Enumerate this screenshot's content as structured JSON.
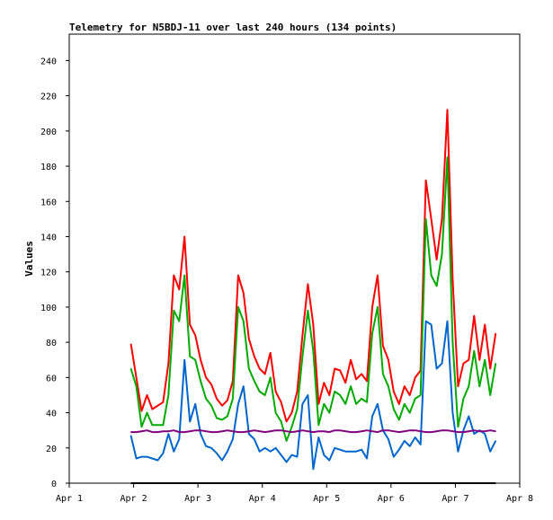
{
  "chart_data": {
    "type": "line",
    "title": "Telemetry for N5BDJ-11 over last 240 hours (134 points)",
    "xlabel": "",
    "ylabel": "Values",
    "ylim": [
      0,
      255
    ],
    "yticks": [
      0,
      20,
      40,
      60,
      80,
      100,
      120,
      140,
      160,
      180,
      200,
      220,
      240
    ],
    "xticks": [
      "Apr 1",
      "Apr 2",
      "Apr 3",
      "Apr 4",
      "Apr 5",
      "Apr 6",
      "Apr 7",
      "Apr 8"
    ],
    "grid": false,
    "x": [
      "Apr 1 23:00",
      "Apr 2 01:00",
      "Apr 2 03:00",
      "Apr 2 05:00",
      "Apr 2 07:00",
      "Apr 2 09:00",
      "Apr 2 11:00",
      "Apr 2 13:00",
      "Apr 2 15:00",
      "Apr 2 17:00",
      "Apr 2 19:00",
      "Apr 2 21:00",
      "Apr 2 23:00",
      "Apr 3 01:00",
      "Apr 3 03:00",
      "Apr 3 05:00",
      "Apr 3 07:00",
      "Apr 3 09:00",
      "Apr 3 11:00",
      "Apr 3 13:00",
      "Apr 3 15:00",
      "Apr 3 17:00",
      "Apr 3 19:00",
      "Apr 3 21:00",
      "Apr 3 23:00",
      "Apr 4 01:00",
      "Apr 4 03:00",
      "Apr 4 05:00",
      "Apr 4 07:00",
      "Apr 4 09:00",
      "Apr 4 11:00",
      "Apr 4 13:00",
      "Apr 4 15:00",
      "Apr 4 17:00",
      "Apr 4 19:00",
      "Apr 4 21:00",
      "Apr 4 23:00",
      "Apr 5 01:00",
      "Apr 5 03:00",
      "Apr 5 05:00",
      "Apr 5 07:00",
      "Apr 5 09:00",
      "Apr 5 11:00",
      "Apr 5 13:00",
      "Apr 5 15:00",
      "Apr 5 17:00",
      "Apr 5 19:00",
      "Apr 5 21:00",
      "Apr 5 23:00",
      "Apr 6 01:00",
      "Apr 6 03:00",
      "Apr 6 05:00",
      "Apr 6 07:00",
      "Apr 6 09:00",
      "Apr 6 11:00",
      "Apr 6 13:00",
      "Apr 6 15:00",
      "Apr 6 17:00",
      "Apr 6 19:00",
      "Apr 6 21:00",
      "Apr 6 23:00",
      "Apr 7 01:00",
      "Apr 7 03:00",
      "Apr 7 05:00",
      "Apr 7 07:00",
      "Apr 7 09:00",
      "Apr 7 11:00",
      "Apr 7 13:00",
      "Apr 7 15:00"
    ],
    "series": [
      {
        "color": "#ff0000",
        "values": [
          79,
          60,
          41,
          50,
          42,
          44,
          46,
          68,
          118,
          110,
          140,
          90,
          84,
          70,
          60,
          56,
          48,
          44,
          47,
          58,
          118,
          108,
          82,
          72,
          65,
          62,
          74,
          52,
          46,
          35,
          40,
          52,
          84,
          113,
          90,
          45,
          57,
          50,
          65,
          64,
          57,
          70,
          59,
          62,
          58,
          100,
          118,
          78,
          70,
          52,
          45,
          55,
          50,
          60,
          64,
          172,
          150,
          127,
          150,
          212,
          116,
          55,
          68,
          70,
          95,
          70,
          90,
          65,
          85
        ]
      },
      {
        "color": "#00aa00",
        "values": [
          65,
          55,
          32,
          40,
          33,
          33,
          33,
          50,
          98,
          92,
          118,
          72,
          70,
          58,
          48,
          44,
          37,
          36,
          38,
          48,
          100,
          92,
          65,
          58,
          52,
          50,
          60,
          40,
          35,
          24,
          32,
          42,
          72,
          98,
          75,
          33,
          45,
          40,
          52,
          50,
          45,
          55,
          45,
          48,
          46,
          85,
          100,
          62,
          55,
          42,
          36,
          45,
          40,
          48,
          50,
          150,
          118,
          112,
          130,
          185,
          80,
          32,
          48,
          55,
          75,
          55,
          70,
          50,
          68
        ]
      },
      {
        "color": "#0066cc",
        "values": [
          27,
          14,
          15,
          15,
          14,
          13,
          17,
          28,
          18,
          25,
          70,
          35,
          45,
          28,
          21,
          20,
          17,
          13,
          18,
          25,
          45,
          55,
          28,
          25,
          18,
          20,
          18,
          20,
          16,
          12,
          16,
          15,
          45,
          50,
          8,
          26,
          16,
          13,
          20,
          19,
          18,
          18,
          18,
          19,
          14,
          38,
          45,
          30,
          25,
          15,
          19,
          24,
          21,
          26,
          22,
          92,
          90,
          65,
          68,
          92,
          40,
          18,
          30,
          38,
          28,
          30,
          28,
          18,
          24
        ]
      },
      {
        "color": "#800080",
        "values": [
          29,
          29,
          29.5,
          30,
          29,
          29,
          29.5,
          29.5,
          30,
          29,
          29,
          29.5,
          30,
          30,
          29.5,
          29,
          29,
          29.5,
          30,
          29.5,
          29,
          29,
          29.5,
          30,
          29.5,
          29,
          29.5,
          30,
          30,
          29.5,
          29,
          29.5,
          30,
          29.5,
          29,
          29.5,
          29.5,
          29,
          30,
          30,
          29.5,
          29,
          29,
          29.5,
          30,
          29.5,
          29,
          30,
          30,
          29.5,
          29,
          29.5,
          30,
          30,
          29.5,
          29,
          29,
          29.5,
          30,
          30,
          29.5,
          29,
          29,
          29.5,
          30,
          29.5,
          29.5,
          30,
          29.5
        ]
      },
      {
        "color": "#000000",
        "values": [
          0,
          0,
          0,
          0,
          0,
          0,
          0,
          0,
          0,
          0,
          0,
          0,
          0,
          0,
          0,
          0,
          0,
          0,
          0,
          0,
          0,
          0,
          0,
          0,
          0,
          0,
          0,
          0,
          0,
          0,
          0,
          0,
          0,
          0,
          0,
          0,
          0,
          0,
          0,
          0,
          0,
          0,
          0,
          0,
          0,
          0,
          0,
          0,
          0,
          0,
          0,
          0,
          0,
          0,
          0,
          0,
          0,
          0,
          0,
          0,
          0,
          0,
          0,
          0,
          0,
          0,
          0,
          0,
          0
        ]
      }
    ]
  }
}
